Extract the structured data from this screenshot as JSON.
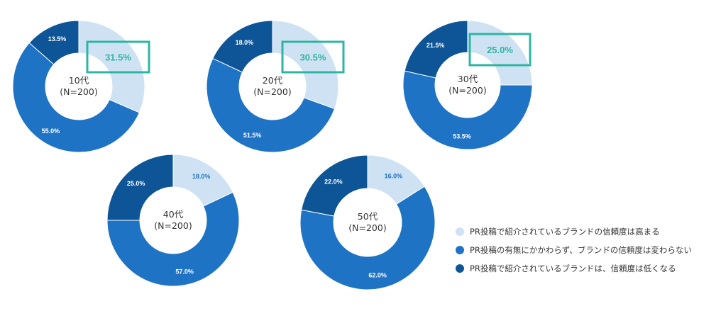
{
  "chart_data": {
    "type": "pie",
    "legend": [
      "PR投稿で紹介されているブランドの信頼度は高まる",
      "PR投稿の有無にかかわらず、ブランドの信頼度は変わらない",
      "PR投稿で紹介されているブランドは、信頼度は低くなる"
    ],
    "legend_placement": "bottom-right",
    "colors": [
      "#cfe2f3",
      "#1f73c4",
      "#0e5597"
    ],
    "highlight_color": "#2db5a3",
    "charts": [
      {
        "center_label": [
          "10代",
          "(N=200)"
        ],
        "values": [
          31.5,
          55.0,
          13.5
        ],
        "labels": [
          "31.5%",
          "55.0%",
          "13.5%"
        ],
        "highlight_first": true
      },
      {
        "center_label": [
          "20代",
          "(N=200)"
        ],
        "values": [
          30.5,
          51.5,
          18.0
        ],
        "labels": [
          "30.5%",
          "51.5%",
          "18.0%"
        ],
        "highlight_first": true
      },
      {
        "center_label": [
          "30代",
          "(N=200)"
        ],
        "values": [
          25.0,
          53.5,
          21.5
        ],
        "labels": [
          "25.0%",
          "53.5%",
          "21.5%"
        ],
        "highlight_first": true
      },
      {
        "center_label": [
          "40代",
          "(N=200)"
        ],
        "values": [
          18.0,
          57.0,
          25.0
        ],
        "labels": [
          "18.0%",
          "57.0%",
          "25.0%"
        ],
        "highlight_first": false
      },
      {
        "center_label": [
          "50代",
          "(N=200)"
        ],
        "values": [
          16.0,
          62.0,
          22.0
        ],
        "labels": [
          "16.0%",
          "62.0%",
          "22.0%"
        ],
        "highlight_first": false
      }
    ]
  }
}
